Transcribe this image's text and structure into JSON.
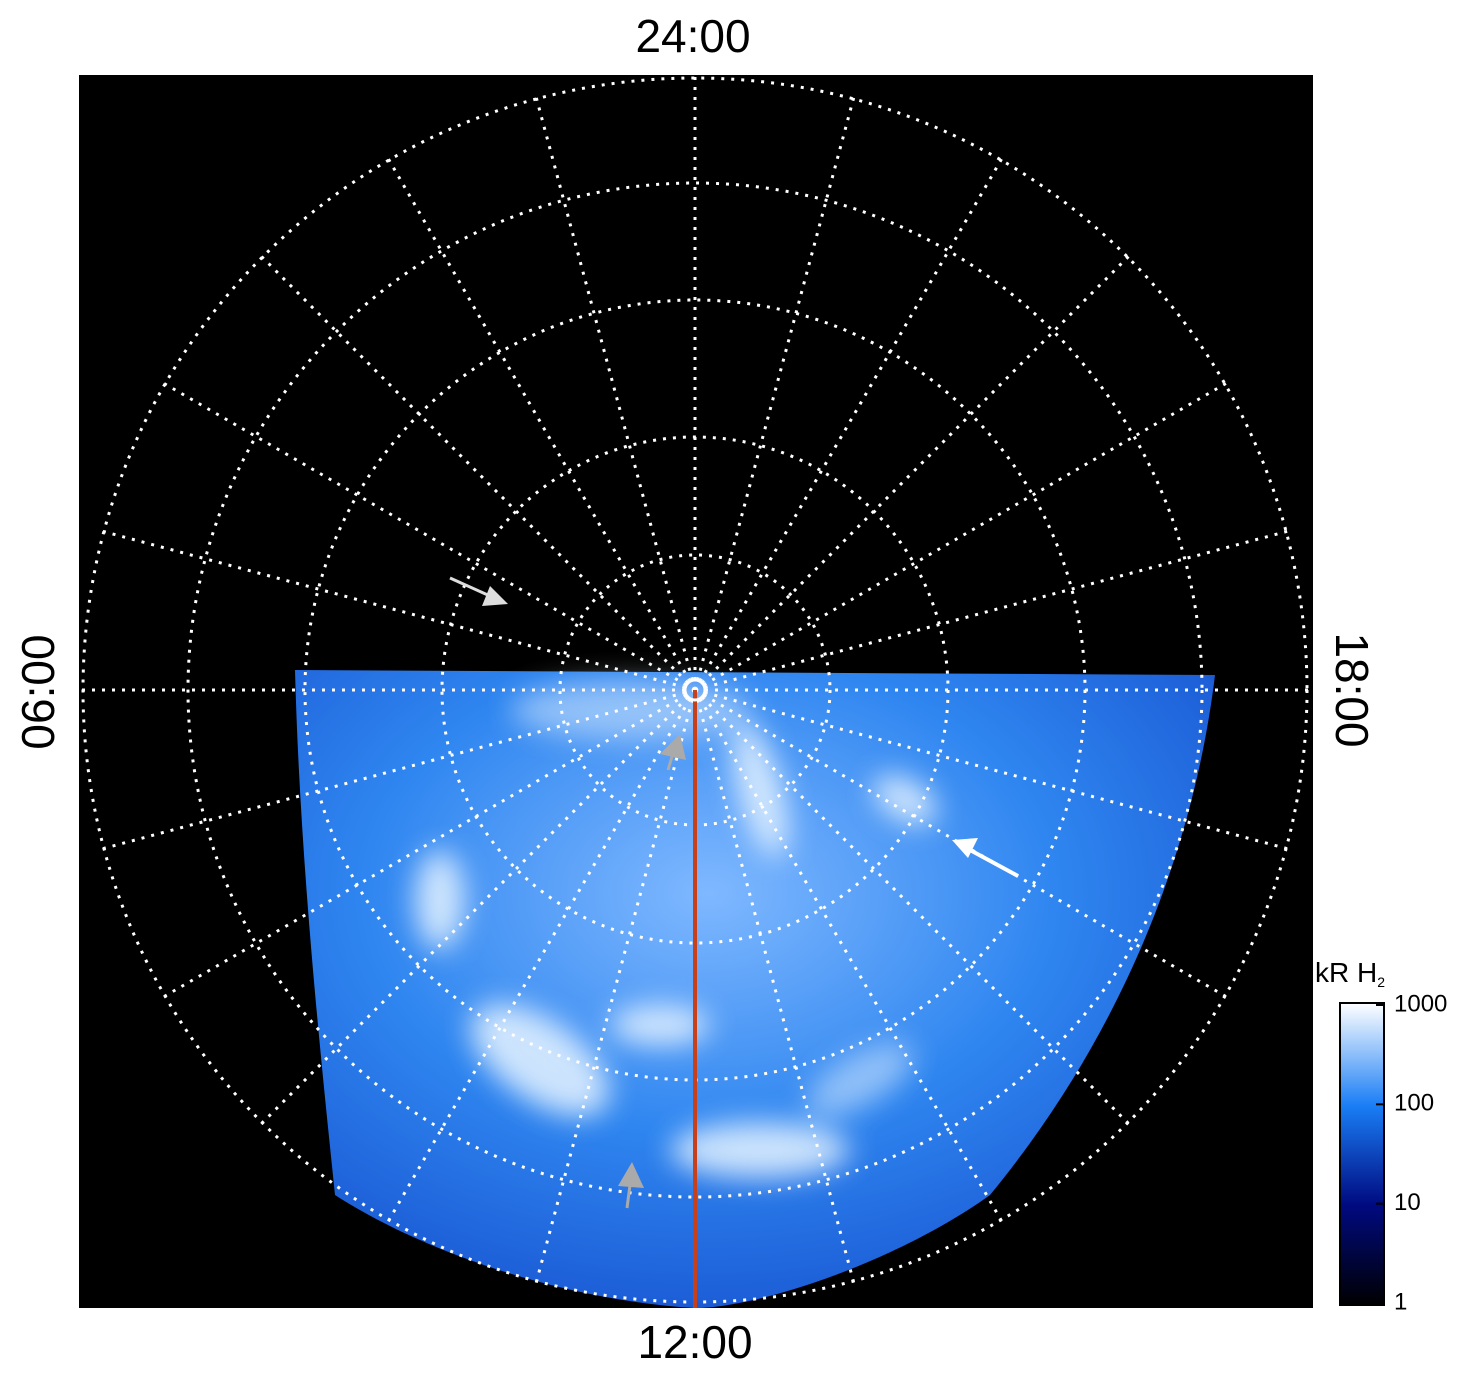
{
  "labels": {
    "top": "24:00",
    "left": "06:00",
    "right": "18:00",
    "bottom": "12:00"
  },
  "colorbar": {
    "title": "kR H",
    "title_sub": "2",
    "scale": "log",
    "lim": [
      1,
      1000
    ],
    "ticks": [
      1,
      10,
      100,
      1000
    ]
  }
}
